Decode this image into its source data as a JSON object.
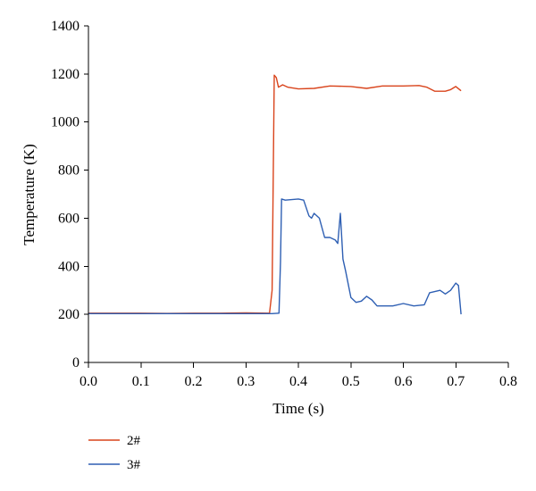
{
  "chart_data": {
    "type": "line",
    "xlabel": "Time (s)",
    "ylabel": "Temperature (K)",
    "xlim": [
      0.0,
      0.8
    ],
    "ylim": [
      0,
      1400
    ],
    "xticks": [
      "0.0",
      "0.1",
      "0.2",
      "0.3",
      "0.4",
      "0.5",
      "0.6",
      "0.7",
      "0.8"
    ],
    "yticks": [
      "0",
      "200",
      "400",
      "600",
      "800",
      "1000",
      "1200",
      "1400"
    ],
    "grid": false,
    "legend_position": "bottom-left",
    "series": [
      {
        "name": "2#",
        "color": "#d9441c",
        "x": [
          0.0,
          0.05,
          0.1,
          0.15,
          0.2,
          0.25,
          0.3,
          0.345,
          0.35,
          0.354,
          0.358,
          0.362,
          0.37,
          0.38,
          0.4,
          0.43,
          0.46,
          0.5,
          0.53,
          0.56,
          0.6,
          0.63,
          0.645,
          0.66,
          0.68,
          0.69,
          0.7,
          0.71
        ],
        "y": [
          205,
          205,
          205,
          204,
          205,
          205,
          206,
          205,
          300,
          1195,
          1185,
          1145,
          1155,
          1145,
          1138,
          1140,
          1150,
          1148,
          1140,
          1150,
          1150,
          1152,
          1145,
          1128,
          1128,
          1135,
          1148,
          1130
        ]
      },
      {
        "name": "3#",
        "color": "#2e5fb3",
        "x": [
          0.0,
          0.1,
          0.2,
          0.3,
          0.35,
          0.363,
          0.366,
          0.368,
          0.375,
          0.4,
          0.41,
          0.42,
          0.425,
          0.43,
          0.44,
          0.45,
          0.46,
          0.47,
          0.475,
          0.48,
          0.485,
          0.49,
          0.5,
          0.51,
          0.52,
          0.53,
          0.54,
          0.55,
          0.56,
          0.58,
          0.6,
          0.62,
          0.64,
          0.65,
          0.67,
          0.68,
          0.69,
          0.7,
          0.705,
          0.71
        ],
        "y": [
          203,
          203,
          203,
          203,
          203,
          205,
          420,
          680,
          675,
          680,
          675,
          610,
          600,
          620,
          600,
          520,
          520,
          510,
          495,
          620,
          430,
          380,
          270,
          250,
          255,
          275,
          260,
          235,
          235,
          235,
          245,
          235,
          240,
          290,
          300,
          285,
          300,
          330,
          320,
          200
        ]
      }
    ]
  }
}
